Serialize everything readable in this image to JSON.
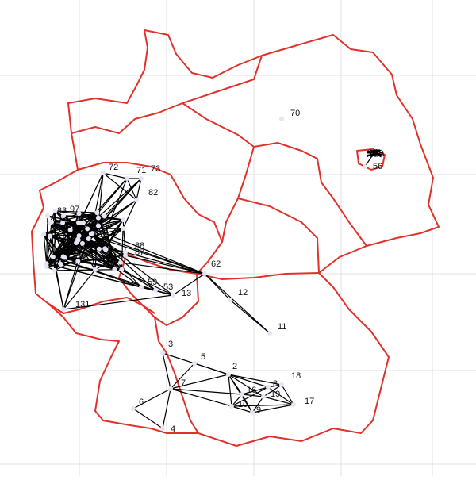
{
  "nodes": [
    {
      "label": "70"
    },
    {
      "label": "56"
    },
    {
      "label": "72"
    },
    {
      "label": "71"
    },
    {
      "label": "73"
    },
    {
      "label": "82"
    },
    {
      "label": "83"
    },
    {
      "label": "97"
    },
    {
      "label": "88"
    },
    {
      "label": "87"
    },
    {
      "label": "62"
    },
    {
      "label": "12"
    },
    {
      "label": "13"
    },
    {
      "label": "131"
    },
    {
      "label": "130"
    },
    {
      "label": "59"
    },
    {
      "label": "53"
    },
    {
      "label": "11"
    },
    {
      "label": "3"
    },
    {
      "label": "5"
    },
    {
      "label": "7"
    },
    {
      "label": "6"
    },
    {
      "label": "4"
    },
    {
      "label": "2"
    },
    {
      "label": "18"
    },
    {
      "label": "16"
    },
    {
      "label": "8"
    },
    {
      "label": "19"
    },
    {
      "label": "10"
    },
    {
      "label": "9"
    },
    {
      "label": "17"
    }
  ]
}
